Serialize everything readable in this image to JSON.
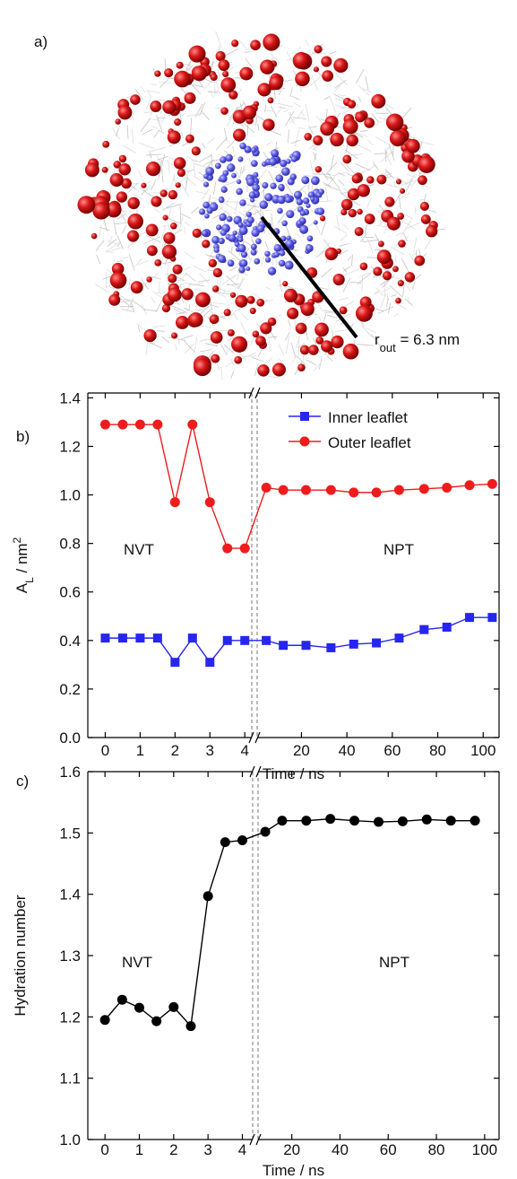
{
  "panel_a": {
    "label": "a)",
    "radius_label": [
      "r",
      "out",
      " = 6.3 nm"
    ]
  },
  "chart_data": [
    {
      "type": "line",
      "panel_label": "b)",
      "xlabel": "Time / ns",
      "ylabel": [
        "A",
        "L",
        " / nm",
        "2"
      ],
      "ylim": [
        0,
        1.42
      ],
      "yticks": [
        {
          "value": 0,
          "label": "0.0"
        },
        0.2,
        0.4,
        0.6,
        0.8,
        {
          "value": 1,
          "label": "1.0"
        },
        1.2,
        1.4
      ],
      "x_segments": [
        {
          "xlim": [
            -0.5,
            4.2
          ],
          "xticks": [
            0,
            1,
            2,
            3,
            4
          ]
        },
        {
          "xlim": [
            0.5,
            107
          ],
          "xticks": [
            20,
            40,
            60,
            80,
            100
          ]
        }
      ],
      "x": [
        0,
        0.5,
        1,
        1.5,
        2,
        2.5,
        3,
        3.5,
        4,
        4.5,
        12,
        22,
        33,
        43,
        53,
        63,
        74,
        84,
        94,
        104
      ],
      "series": [
        {
          "name": "Inner leaflet",
          "color": "#2626f0",
          "marker": "square",
          "values": [
            0.41,
            0.41,
            0.41,
            0.41,
            0.31,
            0.41,
            0.31,
            0.4,
            0.4,
            0.4,
            0.38,
            0.38,
            0.37,
            0.385,
            0.39,
            0.41,
            0.445,
            0.455,
            0.495,
            0.495
          ]
        },
        {
          "name": "Outer leaflet",
          "color": "#ee1c1c",
          "marker": "circle",
          "values": [
            1.29,
            1.29,
            1.29,
            1.29,
            0.97,
            1.29,
            0.97,
            0.78,
            0.78,
            1.03,
            1.02,
            1.02,
            1.02,
            1.01,
            1.01,
            1.02,
            1.025,
            1.03,
            1.04,
            1.045
          ]
        }
      ],
      "legend": "upper right",
      "annotations": [
        "NVT",
        "NPT"
      ]
    },
    {
      "type": "line",
      "panel_label": "c)",
      "xlabel": "Time / ns",
      "ylabel": [
        "Hydration number"
      ],
      "ylim": [
        1.0,
        1.6
      ],
      "yticks": [
        {
          "value": 1,
          "label": "1.0"
        },
        1.1,
        1.2,
        1.3,
        1.4,
        1.5,
        1.6
      ],
      "x_segments": [
        {
          "xlim": [
            -0.5,
            4.3
          ],
          "xticks": [
            0,
            1,
            2,
            3,
            4
          ]
        },
        {
          "xlim": [
            6,
            106
          ],
          "xticks": [
            20,
            40,
            60,
            80,
            100
          ]
        }
      ],
      "x": [
        0,
        0.5,
        1,
        1.5,
        2,
        2.5,
        3,
        3.5,
        4,
        9,
        16,
        26,
        36,
        46,
        56,
        66,
        76,
        86,
        96
      ],
      "series": [
        {
          "color": "#000000",
          "marker": "circle",
          "values": [
            1.195,
            1.228,
            1.215,
            1.193,
            1.216,
            1.185,
            1.397,
            1.485,
            1.488,
            1.502,
            1.52,
            1.52,
            1.523,
            1.52,
            1.518,
            1.519,
            1.522,
            1.52,
            1.52
          ]
        }
      ],
      "annotations": [
        "NVT",
        "NPT"
      ]
    }
  ]
}
